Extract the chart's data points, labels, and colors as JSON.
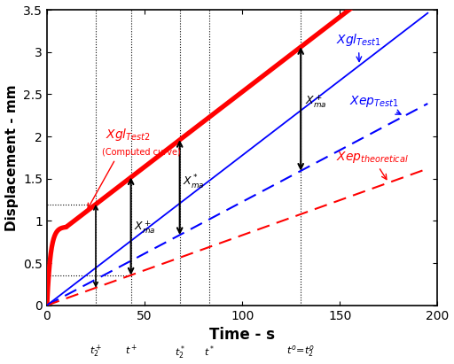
{
  "xlabel": "Time - s",
  "ylabel": "Displacement - mm",
  "xlim": [
    0,
    200
  ],
  "ylim": [
    0,
    3.5
  ],
  "xticks": [
    0,
    50,
    100,
    150,
    200
  ],
  "yticks": [
    0,
    0.5,
    1.0,
    1.5,
    2.0,
    2.5,
    3.0,
    3.5
  ],
  "bg_color": "#ffffff",
  "t_end": 195,
  "xgl_test1_slope": 0.01775,
  "xep_test1_slope": 0.01225,
  "xep_theo_slope": 0.0083,
  "t_nl": 10.0,
  "y_nl_end": 0.93,
  "xgl2_linear_slope": 0.01775,
  "t2_plus": 25,
  "t_plus": 43,
  "t2_star": 68,
  "t_star": 83,
  "t0_eq_t2o": 130
}
